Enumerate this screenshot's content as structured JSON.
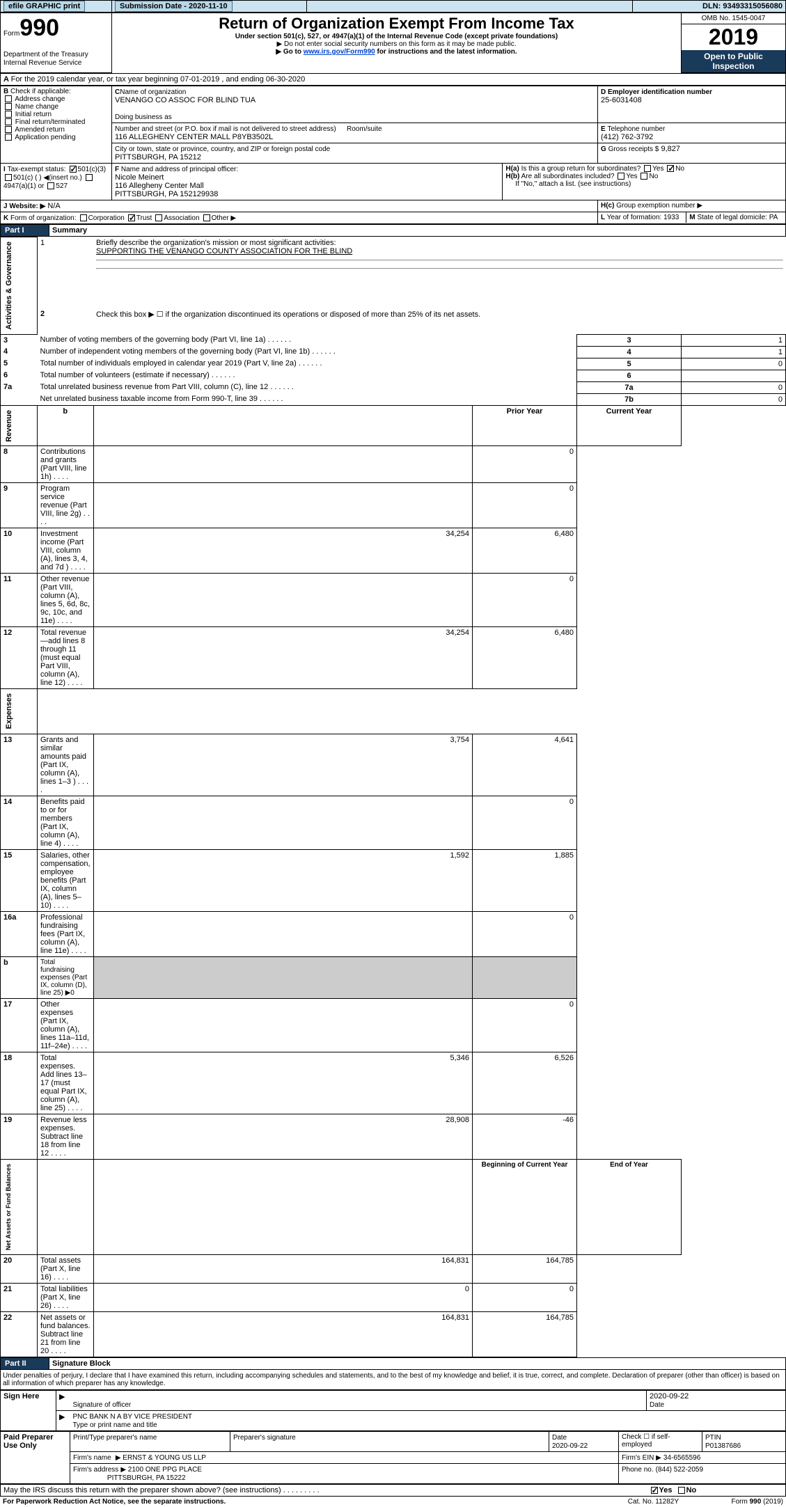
{
  "top": {
    "efile": "efile GRAPHIC print",
    "sub_date_lbl": "Submission Date - 2020-11-10",
    "dln": "DLN: 93493315056080"
  },
  "hdr": {
    "form_no": "990",
    "form_word": "Form",
    "title": "Return of Organization Exempt From Income Tax",
    "subtitle": "Under section 501(c), 527, or 4947(a)(1) of the Internal Revenue Code (except private foundations)",
    "note1": "▶ Do not enter social security numbers on this form as it may be made public.",
    "note2": "▶ Go to www.irs.gov/Form990 for instructions and the latest information.",
    "link": "www.irs.gov/Form990",
    "omb": "OMB No. 1545-0047",
    "year": "2019",
    "open": "Open to Public Inspection",
    "dept": "Department of the Treasury",
    "irs": "Internal Revenue Service"
  },
  "A": {
    "line": "For the 2019 calendar year, or tax year beginning 07-01-2019",
    "end": ", and ending 06-30-2020"
  },
  "B": {
    "lbl": "Check if applicable:",
    "items": [
      "Address change",
      "Name change",
      "Initial return",
      "Final return/terminated",
      "Amended return",
      "Application pending"
    ]
  },
  "C": {
    "lblname": "Name of organization",
    "name": "VENANGO CO ASSOC FOR BLIND TUA",
    "dba_lbl": "Doing business as",
    "addr_lbl": "Number and street (or P.O. box if mail is not delivered to street address)",
    "room_lbl": "Room/suite",
    "addr": "116 ALLEGHENY CENTER MALL P8YB3502L",
    "city_lbl": "City or town, state or province, country, and ZIP or foreign postal code",
    "city": "PITTSBURGH, PA  15212"
  },
  "D": {
    "lbl": "Employer identification number",
    "val": "25-6031408"
  },
  "E": {
    "lbl": "Telephone number",
    "val": "(412) 762-3792"
  },
  "G": {
    "lbl": "Gross receipts $",
    "val": "9,827"
  },
  "F": {
    "lbl": "Name and address of principal officer:",
    "name": "Nicole Meinert",
    "addr1": "116 Allegheny Center Mall",
    "addr2": "PITTSBURGH, PA  152129938"
  },
  "H": {
    "a": "Is this a group return for subordinates?",
    "b": "Are all subordinates included?",
    "bnote": "If \"No,\" attach a list. (see instructions)",
    "c": "Group exemption number ▶",
    "yes": "Yes",
    "no": "No"
  },
  "I": {
    "line": "Tax-exempt status:",
    "c3": "501(c)(3)",
    "c": "501(c) (  ) ◀(insert no.)",
    "a": "4947(a)(1) or",
    "s": "527"
  },
  "J": {
    "lbl": "Website: ▶",
    "val": "N/A"
  },
  "K": {
    "lbl": "Form of organization:",
    "corp": "Corporation",
    "trust": "Trust",
    "assoc": "Association",
    "other": "Other ▶"
  },
  "L": {
    "lbl": "Year of formation:",
    "val": "1933"
  },
  "M": {
    "lbl": "State of legal domicile:",
    "val": "PA"
  },
  "part1": {
    "lbl": "Part I",
    "title": "Summary"
  },
  "part2": {
    "lbl": "Part II",
    "title": "Signature Block"
  },
  "s1": {
    "q1": "Briefly describe the organization's mission or most significant activities:",
    "q1v": "SUPPORTING THE VENANGO COUNTY ASSOCIATION FOR THE BLIND",
    "q2": "Check this box ▶ ☐  if the organization discontinued its operations or disposed of more than 25% of its net assets.",
    "rows": [
      {
        "n": "3",
        "t": "Number of voting members of the governing body (Part VI, line 1a)",
        "rn": "3",
        "v": "1"
      },
      {
        "n": "4",
        "t": "Number of independent voting members of the governing body (Part VI, line 1b)",
        "rn": "4",
        "v": "1"
      },
      {
        "n": "5",
        "t": "Total number of individuals employed in calendar year 2019 (Part V, line 2a)",
        "rn": "5",
        "v": "0"
      },
      {
        "n": "6",
        "t": "Total number of volunteers (estimate if necessary)",
        "rn": "6",
        "v": ""
      },
      {
        "n": "7a",
        "t": "Total unrelated business revenue from Part VIII, column (C), line 12",
        "rn": "7a",
        "v": "0"
      },
      {
        "n": "",
        "t": "Net unrelated business taxable income from Form 990-T, line 39",
        "rn": "7b",
        "v": "0"
      }
    ]
  },
  "cols": {
    "b": "b",
    "py": "Prior Year",
    "cy": "Current Year",
    "boy": "Beginning of Current Year",
    "eoy": "End of Year"
  },
  "rev": [
    {
      "n": "8",
      "t": "Contributions and grants (Part VIII, line 1h)",
      "p": "",
      "c": "0"
    },
    {
      "n": "9",
      "t": "Program service revenue (Part VIII, line 2g)",
      "p": "",
      "c": "0"
    },
    {
      "n": "10",
      "t": "Investment income (Part VIII, column (A), lines 3, 4, and 7d )",
      "p": "34,254",
      "c": "6,480"
    },
    {
      "n": "11",
      "t": "Other revenue (Part VIII, column (A), lines 5, 6d, 8c, 9c, 10c, and 11e)",
      "p": "",
      "c": "0"
    },
    {
      "n": "12",
      "t": "Total revenue—add lines 8 through 11 (must equal Part VIII, column (A), line 12)",
      "p": "34,254",
      "c": "6,480"
    }
  ],
  "exp": [
    {
      "n": "13",
      "t": "Grants and similar amounts paid (Part IX, column (A), lines 1–3 )",
      "p": "3,754",
      "c": "4,641"
    },
    {
      "n": "14",
      "t": "Benefits paid to or for members (Part IX, column (A), line 4)",
      "p": "",
      "c": "0"
    },
    {
      "n": "15",
      "t": "Salaries, other compensation, employee benefits (Part IX, column (A), lines 5–10)",
      "p": "1,592",
      "c": "1,885"
    },
    {
      "n": "16a",
      "t": "Professional fundraising fees (Part IX, column (A), line 11e)",
      "p": "",
      "c": "0"
    },
    {
      "n": "b",
      "t": "Total fundraising expenses (Part IX, column (D), line 25) ▶0",
      "p": "x",
      "c": "x"
    },
    {
      "n": "17",
      "t": "Other expenses (Part IX, column (A), lines 11a–11d, 11f–24e)",
      "p": "",
      "c": "0"
    },
    {
      "n": "18",
      "t": "Total expenses. Add lines 13–17 (must equal Part IX, column (A), line 25)",
      "p": "5,346",
      "c": "6,526"
    },
    {
      "n": "19",
      "t": "Revenue less expenses. Subtract line 18 from line 12",
      "p": "28,908",
      "c": "-46"
    }
  ],
  "net": [
    {
      "n": "20",
      "t": "Total assets (Part X, line 16)",
      "p": "164,831",
      "c": "164,785"
    },
    {
      "n": "21",
      "t": "Total liabilities (Part X, line 26)",
      "p": "0",
      "c": "0"
    },
    {
      "n": "22",
      "t": "Net assets or fund balances. Subtract line 21 from line 20",
      "p": "164,831",
      "c": "164,785"
    }
  ],
  "sidelabels": {
    "ag": "Activities & Governance",
    "rev": "Revenue",
    "exp": "Expenses",
    "net": "Net Assets or Fund Balances"
  },
  "decl": "Under penalties of perjury, I declare that I have examined this return, including accompanying schedules and statements, and to the best of my knowledge and belief, it is true, correct, and complete. Declaration of preparer (other than officer) is based on all information of which preparer has any knowledge.",
  "sign": {
    "here": "Sign Here",
    "sig": "Signature of officer",
    "date": "2020-09-22",
    "date_lbl": "Date",
    "name": "PNC BANK N A BY VICE PRESIDENT",
    "name_lbl": "Type or print name and title"
  },
  "paid": {
    "lbl": "Paid Preparer Use Only",
    "c1": "Print/Type preparer's name",
    "c2": "Preparer's signature",
    "c3": "Date",
    "c3v": "2020-09-22",
    "c4": "Check ☐ if self-employed",
    "c5": "PTIN",
    "c5v": "P01387686",
    "firm_lbl": "Firm's name",
    "firm": "▶ ERNST & YOUNG US LLP",
    "ein_lbl": "Firm's EIN ▶",
    "ein": "34-6565596",
    "addr_lbl": "Firm's address",
    "addr": "▶ 2100 ONE PPG PLACE",
    "addr2": "PITTSBURGH, PA  15222",
    "ph_lbl": "Phone no.",
    "ph": "(844) 522-2059"
  },
  "foot": {
    "q": "May the IRS discuss this return with the preparer shown above? (see instructions)",
    "act": "For Paperwork Reduction Act Notice, see the separate instructions.",
    "cat": "Cat. No. 11282Y",
    "form": "Form 990 (2019)"
  }
}
